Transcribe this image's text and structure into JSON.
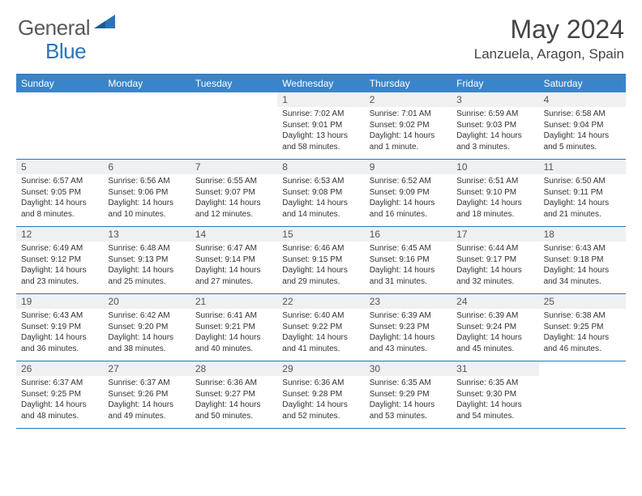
{
  "logo": {
    "general": "General",
    "blue": "Blue"
  },
  "title": "May 2024",
  "location": "Lanzuela, Aragon, Spain",
  "colors": {
    "header_bg": "#3a85c9",
    "border": "#2b74b8",
    "daynum_bg": "#eef0f2",
    "text": "#333333",
    "logo_gray": "#5a5a5a",
    "logo_blue": "#2b74b8"
  },
  "day_headers": [
    "Sunday",
    "Monday",
    "Tuesday",
    "Wednesday",
    "Thursday",
    "Friday",
    "Saturday"
  ],
  "weeks": [
    [
      null,
      null,
      null,
      {
        "n": "1",
        "sr": "7:02 AM",
        "ss": "9:01 PM",
        "dl": "13 hours and 58 minutes."
      },
      {
        "n": "2",
        "sr": "7:01 AM",
        "ss": "9:02 PM",
        "dl": "14 hours and 1 minute."
      },
      {
        "n": "3",
        "sr": "6:59 AM",
        "ss": "9:03 PM",
        "dl": "14 hours and 3 minutes."
      },
      {
        "n": "4",
        "sr": "6:58 AM",
        "ss": "9:04 PM",
        "dl": "14 hours and 5 minutes."
      }
    ],
    [
      {
        "n": "5",
        "sr": "6:57 AM",
        "ss": "9:05 PM",
        "dl": "14 hours and 8 minutes."
      },
      {
        "n": "6",
        "sr": "6:56 AM",
        "ss": "9:06 PM",
        "dl": "14 hours and 10 minutes."
      },
      {
        "n": "7",
        "sr": "6:55 AM",
        "ss": "9:07 PM",
        "dl": "14 hours and 12 minutes."
      },
      {
        "n": "8",
        "sr": "6:53 AM",
        "ss": "9:08 PM",
        "dl": "14 hours and 14 minutes."
      },
      {
        "n": "9",
        "sr": "6:52 AM",
        "ss": "9:09 PM",
        "dl": "14 hours and 16 minutes."
      },
      {
        "n": "10",
        "sr": "6:51 AM",
        "ss": "9:10 PM",
        "dl": "14 hours and 18 minutes."
      },
      {
        "n": "11",
        "sr": "6:50 AM",
        "ss": "9:11 PM",
        "dl": "14 hours and 21 minutes."
      }
    ],
    [
      {
        "n": "12",
        "sr": "6:49 AM",
        "ss": "9:12 PM",
        "dl": "14 hours and 23 minutes."
      },
      {
        "n": "13",
        "sr": "6:48 AM",
        "ss": "9:13 PM",
        "dl": "14 hours and 25 minutes."
      },
      {
        "n": "14",
        "sr": "6:47 AM",
        "ss": "9:14 PM",
        "dl": "14 hours and 27 minutes."
      },
      {
        "n": "15",
        "sr": "6:46 AM",
        "ss": "9:15 PM",
        "dl": "14 hours and 29 minutes."
      },
      {
        "n": "16",
        "sr": "6:45 AM",
        "ss": "9:16 PM",
        "dl": "14 hours and 31 minutes."
      },
      {
        "n": "17",
        "sr": "6:44 AM",
        "ss": "9:17 PM",
        "dl": "14 hours and 32 minutes."
      },
      {
        "n": "18",
        "sr": "6:43 AM",
        "ss": "9:18 PM",
        "dl": "14 hours and 34 minutes."
      }
    ],
    [
      {
        "n": "19",
        "sr": "6:43 AM",
        "ss": "9:19 PM",
        "dl": "14 hours and 36 minutes."
      },
      {
        "n": "20",
        "sr": "6:42 AM",
        "ss": "9:20 PM",
        "dl": "14 hours and 38 minutes."
      },
      {
        "n": "21",
        "sr": "6:41 AM",
        "ss": "9:21 PM",
        "dl": "14 hours and 40 minutes."
      },
      {
        "n": "22",
        "sr": "6:40 AM",
        "ss": "9:22 PM",
        "dl": "14 hours and 41 minutes."
      },
      {
        "n": "23",
        "sr": "6:39 AM",
        "ss": "9:23 PM",
        "dl": "14 hours and 43 minutes."
      },
      {
        "n": "24",
        "sr": "6:39 AM",
        "ss": "9:24 PM",
        "dl": "14 hours and 45 minutes."
      },
      {
        "n": "25",
        "sr": "6:38 AM",
        "ss": "9:25 PM",
        "dl": "14 hours and 46 minutes."
      }
    ],
    [
      {
        "n": "26",
        "sr": "6:37 AM",
        "ss": "9:25 PM",
        "dl": "14 hours and 48 minutes."
      },
      {
        "n": "27",
        "sr": "6:37 AM",
        "ss": "9:26 PM",
        "dl": "14 hours and 49 minutes."
      },
      {
        "n": "28",
        "sr": "6:36 AM",
        "ss": "9:27 PM",
        "dl": "14 hours and 50 minutes."
      },
      {
        "n": "29",
        "sr": "6:36 AM",
        "ss": "9:28 PM",
        "dl": "14 hours and 52 minutes."
      },
      {
        "n": "30",
        "sr": "6:35 AM",
        "ss": "9:29 PM",
        "dl": "14 hours and 53 minutes."
      },
      {
        "n": "31",
        "sr": "6:35 AM",
        "ss": "9:30 PM",
        "dl": "14 hours and 54 minutes."
      },
      null
    ]
  ],
  "labels": {
    "sunrise": "Sunrise:",
    "sunset": "Sunset:",
    "daylight": "Daylight:"
  }
}
